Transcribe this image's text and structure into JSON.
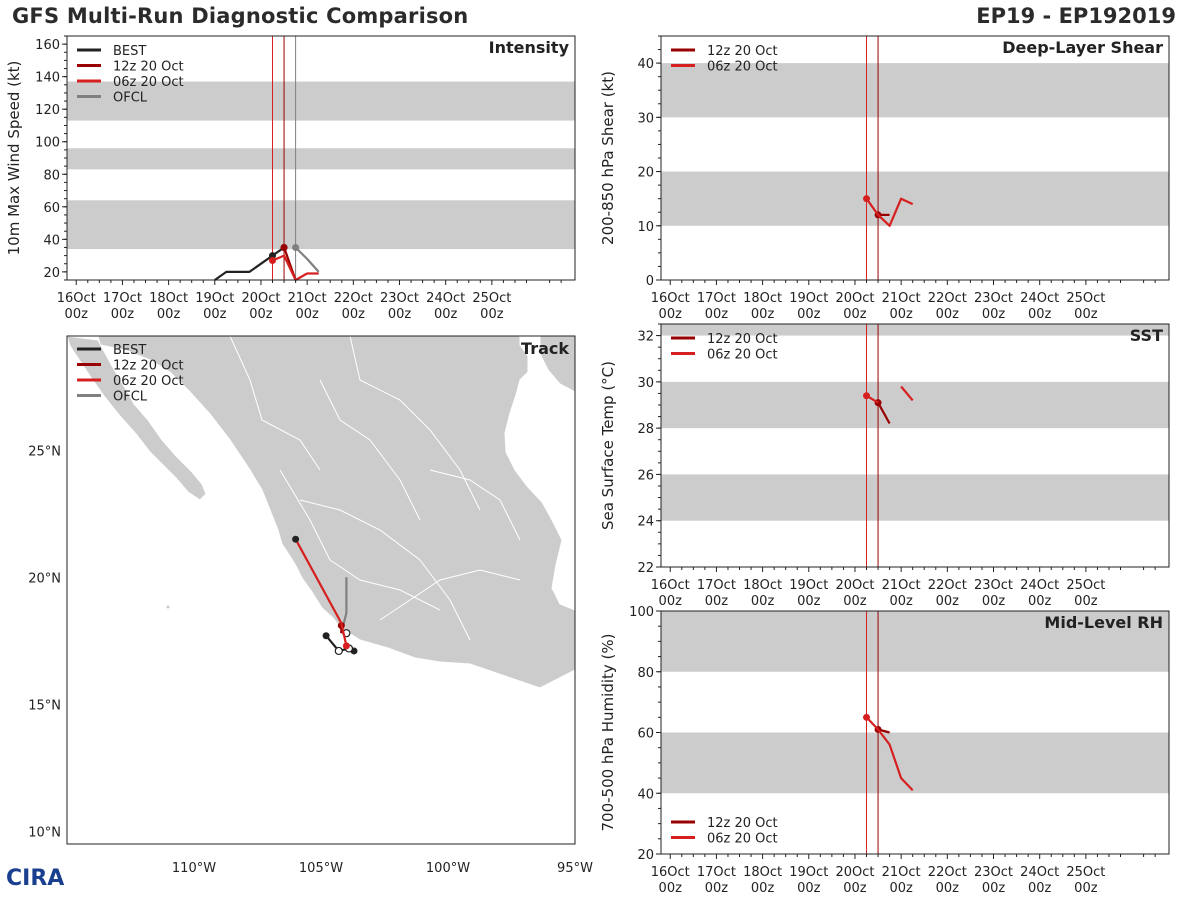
{
  "header": {
    "title": "GFS Multi-Run Diagnostic Comparison",
    "storm_id": "EP19 - EP192019"
  },
  "logo": {
    "text": "CIRA"
  },
  "colors": {
    "best": "#222222",
    "run12z": "#990000",
    "run06z": "#d62020",
    "ofcl": "#808080",
    "band": "#cccccc",
    "land": "#cccccc",
    "borders": "#ffffff"
  },
  "time_ticks": [
    {
      "day": "16Oct",
      "hour": "00z"
    },
    {
      "day": "17Oct",
      "hour": "00z"
    },
    {
      "day": "18Oct",
      "hour": "00z"
    },
    {
      "day": "19Oct",
      "hour": "00z"
    },
    {
      "day": "20Oct",
      "hour": "00z"
    },
    {
      "day": "21Oct",
      "hour": "00z"
    },
    {
      "day": "22Oct",
      "hour": "00z"
    },
    {
      "day": "23Oct",
      "hour": "00z"
    },
    {
      "day": "24Oct",
      "hour": "00z"
    },
    {
      "day": "25Oct",
      "hour": "00z"
    }
  ],
  "chart_data": [
    {
      "id": "intensity",
      "type": "line",
      "title": "Intensity",
      "ylabel": "10m Max Wind Speed (kt)",
      "x_units": "days since 16Oct 00z",
      "xlim": [
        -0.2,
        10.8
      ],
      "ylim": [
        15,
        165
      ],
      "yticks": [
        20,
        40,
        60,
        80,
        100,
        120,
        140,
        160
      ],
      "bands": [
        [
          34,
          64
        ],
        [
          83,
          96
        ],
        [
          113,
          137
        ]
      ],
      "vlines": [
        {
          "x": 4.25,
          "color": "run06z"
        },
        {
          "x": 4.5,
          "color": "run12z"
        },
        {
          "x": 4.75,
          "color": "ofcl"
        }
      ],
      "legend": [
        "BEST",
        "12z 20 Oct",
        "06z 20 Oct",
        "OFCL"
      ],
      "legend_position": "top-left",
      "series": [
        {
          "name": "BEST",
          "color": "best",
          "x": [
            3.0,
            3.25,
            3.75,
            4.0,
            4.25,
            4.5
          ],
          "y": [
            15,
            20,
            20,
            25,
            30,
            35
          ],
          "markers": [
            4.25,
            4.5
          ]
        },
        {
          "name": "12z 20 Oct",
          "color": "run12z",
          "x": [
            4.5,
            4.75
          ],
          "y": [
            35,
            15
          ],
          "markers": [
            4.5
          ]
        },
        {
          "name": "06z 20 Oct",
          "color": "run06z",
          "x": [
            4.25,
            4.5,
            4.75,
            5.0,
            5.25
          ],
          "y": [
            27,
            30,
            15,
            19,
            19
          ],
          "markers": [
            4.25
          ]
        },
        {
          "name": "OFCL",
          "color": "ofcl",
          "x": [
            4.75,
            5.0,
            5.25
          ],
          "y": [
            35,
            28,
            20
          ],
          "markers": [
            4.75
          ]
        }
      ]
    },
    {
      "id": "shear",
      "type": "line",
      "title": "Deep-Layer Shear",
      "ylabel": "200-850 hPa Shear (kt)",
      "x_units": "days since 16Oct 00z",
      "xlim": [
        -0.2,
        10.8
      ],
      "ylim": [
        0,
        45
      ],
      "yticks": [
        0,
        10,
        20,
        30,
        40
      ],
      "bands": [
        [
          10,
          20
        ],
        [
          30,
          40
        ]
      ],
      "vlines": [
        {
          "x": 4.25,
          "color": "run06z"
        },
        {
          "x": 4.5,
          "color": "run12z"
        }
      ],
      "legend": [
        "12z 20 Oct",
        "06z 20 Oct"
      ],
      "legend_position": "top-left",
      "series": [
        {
          "name": "12z 20 Oct",
          "color": "run12z",
          "x": [
            4.5,
            4.75
          ],
          "y": [
            12,
            12
          ],
          "markers": [
            4.5
          ]
        },
        {
          "name": "06z 20 Oct",
          "color": "run06z",
          "x": [
            4.25,
            4.5,
            4.75,
            5.0,
            5.25
          ],
          "y": [
            15,
            12,
            10,
            15,
            14
          ],
          "markers": [
            4.25
          ]
        }
      ]
    },
    {
      "id": "sst",
      "type": "line",
      "title": "SST",
      "ylabel": "Sea Surface Temp (°C)",
      "x_units": "days since 16Oct 00z",
      "xlim": [
        -0.2,
        10.8
      ],
      "ylim": [
        22,
        32.5
      ],
      "yticks": [
        22,
        24,
        26,
        28,
        30,
        32
      ],
      "bands": [
        [
          24,
          26
        ],
        [
          28,
          30
        ],
        [
          32,
          32.5
        ]
      ],
      "vlines": [
        {
          "x": 4.25,
          "color": "run06z"
        },
        {
          "x": 4.5,
          "color": "run12z"
        }
      ],
      "legend": [
        "12z 20 Oct",
        "06z 20 Oct"
      ],
      "legend_position": "top-left",
      "series": [
        {
          "name": "12z 20 Oct",
          "color": "run12z",
          "x": [
            4.5,
            4.75
          ],
          "y": [
            29.1,
            28.2
          ],
          "markers": [
            4.5
          ]
        },
        {
          "name": "06z 20 Oct",
          "color": "run06z",
          "x": [
            4.25,
            4.5
          ],
          "y": [
            29.4,
            29.1
          ],
          "markers": [
            4.25
          ]
        },
        {
          "name": "06z 20 Oct (later)",
          "color": "run06z",
          "x": [
            5.0,
            5.25
          ],
          "y": [
            29.8,
            29.2
          ],
          "markers": []
        }
      ]
    },
    {
      "id": "rh",
      "type": "line",
      "title": "Mid-Level RH",
      "ylabel": "700-500 hPa Humidity (%)",
      "x_units": "days since 16Oct 00z",
      "xlim": [
        -0.2,
        10.8
      ],
      "ylim": [
        20,
        100
      ],
      "yticks": [
        20,
        40,
        60,
        80,
        100
      ],
      "bands": [
        [
          40,
          60
        ],
        [
          80,
          100
        ]
      ],
      "vlines": [
        {
          "x": 4.25,
          "color": "run06z"
        },
        {
          "x": 4.5,
          "color": "run12z"
        }
      ],
      "legend": [
        "12z 20 Oct",
        "06z 20 Oct"
      ],
      "legend_position": "bottom-left",
      "series": [
        {
          "name": "12z 20 Oct",
          "color": "run12z",
          "x": [
            4.5,
            4.75
          ],
          "y": [
            61,
            60
          ],
          "markers": [
            4.5
          ]
        },
        {
          "name": "06z 20 Oct",
          "color": "run06z",
          "x": [
            4.25,
            4.5,
            4.75,
            5.0,
            5.25
          ],
          "y": [
            65,
            61,
            56,
            45,
            41
          ],
          "markers": [
            4.25
          ]
        }
      ]
    },
    {
      "id": "track",
      "type": "line",
      "title": "Track",
      "x_units": "degrees longitude (negative = W)",
      "y_units": "degrees latitude",
      "xlim": [
        -115,
        -95
      ],
      "ylim": [
        9.5,
        29.5
      ],
      "xticks": [
        -110,
        -105,
        -100,
        -95
      ],
      "xtick_labels": [
        "110°W",
        "105°W",
        "100°W",
        "95°W"
      ],
      "yticks": [
        10,
        15,
        20,
        25
      ],
      "ytick_labels": [
        "10°N",
        "15°N",
        "20°N",
        "25°N"
      ],
      "legend": [
        "BEST",
        "12z 20 Oct",
        "06z 20 Oct",
        "OFCL"
      ],
      "legend_position": "top-left",
      "series": [
        {
          "name": "BEST",
          "color": "best",
          "x": [
            -104.8,
            -104.3,
            -103.9,
            -103.7
          ],
          "y": [
            17.7,
            17.1,
            17.2,
            17.1
          ],
          "open_markers": [
            [
              -104.3,
              17.1
            ],
            [
              -103.9,
              17.2
            ]
          ]
        },
        {
          "name": "OFCL",
          "color": "ofcl",
          "x": [
            -104.2,
            -104.1,
            -104.0,
            -104.0
          ],
          "y": [
            17.8,
            18.2,
            18.6,
            20.0
          ],
          "open_markers": [
            [
              -104.0,
              17.8
            ]
          ]
        },
        {
          "name": "12z 20 Oct",
          "color": "run12z",
          "x": [
            -104.2,
            -104.2
          ],
          "y": [
            17.8,
            18.1
          ],
          "markers": [
            [
              -104.2,
              18.1
            ]
          ]
        },
        {
          "name": "06z 20 Oct",
          "color": "run06z",
          "x": [
            -104.0,
            -104.2,
            -106.0
          ],
          "y": [
            17.3,
            18.2,
            21.5
          ],
          "markers": [
            [
              -104.0,
              17.3
            ]
          ],
          "end_marker": [
            -106.0,
            21.5
          ]
        }
      ]
    }
  ]
}
